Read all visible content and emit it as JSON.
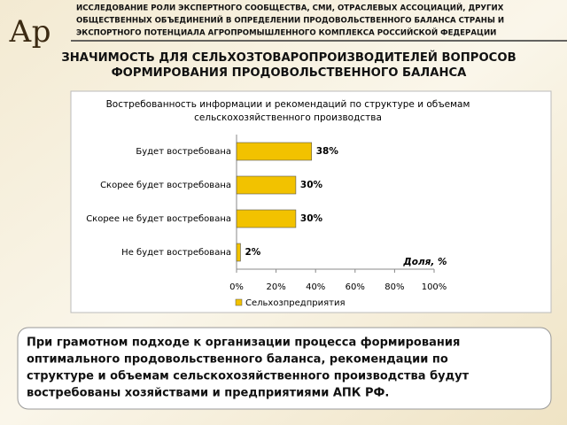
{
  "header": {
    "logo": "Ар",
    "lines": [
      "ИССЛЕДОВАНИЕ РОЛИ ЭКСПЕРТНОГО СООБЩЕСТВА, СМИ, ОТРАСЛЕВЫХ АССОЦИАЦИЙ, ДРУГИХ",
      "ОБЩЕСТВЕННЫХ ОБЪЕДИНЕНИЙ В ОПРЕДЕЛЕНИИ ПРОДОВОЛЬСТВЕННОГО БАЛАНСА СТРАНЫ И",
      "ЭКСПОРТНОГО ПОТЕНЦИАЛА АГРОПРОМЫШЛЕННОГО КОМПЛЕКСА РОССИЙСКОЙ ФЕДЕРАЦИИ"
    ]
  },
  "slide_title": [
    "ЗНАЧИМОСТЬ ДЛЯ СЕЛЬХОЗТОВАРОПРОИЗВОДИТЕЛЕЙ ВОПРОСОВ",
    "ФОРМИРОВАНИЯ ПРОДОВОЛЬСТВЕННОГО БАЛАНСА"
  ],
  "chart_data": {
    "type": "bar",
    "orientation": "horizontal",
    "title": [
      "Востребованность информации и рекомендаций по структуре и объемам",
      "сельскохозяйственного производства"
    ],
    "categories": [
      "Будет востребована",
      "Скорее будет востребована",
      "Скорее не будет востребована",
      "Не будет востребована"
    ],
    "series": [
      {
        "name": "Сельхозпредприятия",
        "color": "#f2c200",
        "values": [
          38,
          30,
          30,
          2
        ],
        "value_labels": [
          "38%",
          "30%",
          "30%",
          "2%"
        ]
      }
    ],
    "xlabel": "Доля, %",
    "xlim": [
      0,
      100
    ],
    "xticks": [
      {
        "value": 0,
        "label": "0%"
      },
      {
        "value": 20,
        "label": "20%"
      },
      {
        "value": 40,
        "label": "40%"
      },
      {
        "value": 60,
        "label": "60%"
      },
      {
        "value": 80,
        "label": "80%"
      },
      {
        "value": 100,
        "label": "100%"
      }
    ],
    "legend": "bottom"
  },
  "note": [
    "При грамотном подходе к организации процесса формирования",
    "оптимального продовольственного баланса, рекомендации по",
    "структуре и объемам сельскохозяйственного производства будут",
    "востребованы хозяйствами и предприятиями АПК РФ."
  ]
}
